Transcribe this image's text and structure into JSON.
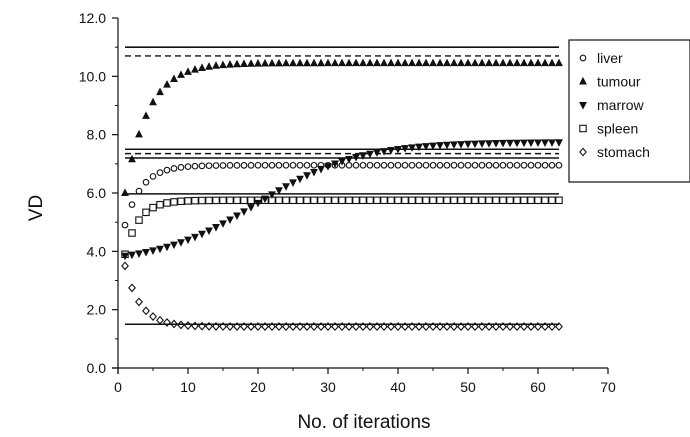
{
  "chart_data": {
    "type": "scatter",
    "xlabel": "No. of iterations",
    "ylabel": "VD",
    "xlim": [
      0,
      70
    ],
    "ylim": [
      0,
      12
    ],
    "xticks": [
      0,
      10,
      20,
      30,
      40,
      50,
      60,
      70
    ],
    "yticks": [
      "0.0",
      "2.0",
      "4.0",
      "6.0",
      "8.0",
      "10.0",
      "12.0"
    ],
    "legend_position": "top-right",
    "grid": false,
    "series": [
      {
        "name": "liver",
        "marker": "circle",
        "start": 4.9,
        "end": 6.95,
        "rate": 0.42,
        "solid": 7.2,
        "dashed": 7.2
      },
      {
        "name": "tumour",
        "marker": "triangle-up",
        "start": 6.0,
        "end": 10.45,
        "rate": 0.3,
        "solid": 11.0,
        "dashed": 10.7
      },
      {
        "name": "marrow",
        "marker": "triangle-down",
        "start": 3.85,
        "end": 7.75,
        "rate": 0.14,
        "midpoint": 20,
        "solid": 7.5,
        "dashed": 7.35
      },
      {
        "name": "spleen",
        "marker": "square",
        "start": 3.9,
        "end": 5.75,
        "rate": 0.5,
        "solid": 5.97,
        "dashed": 5.97
      },
      {
        "name": "stomach",
        "marker": "diamond",
        "start": 3.5,
        "end": 1.42,
        "rate": 0.45,
        "solid": 1.5,
        "dashed": 1.5
      }
    ],
    "x_range": [
      1,
      63
    ]
  }
}
